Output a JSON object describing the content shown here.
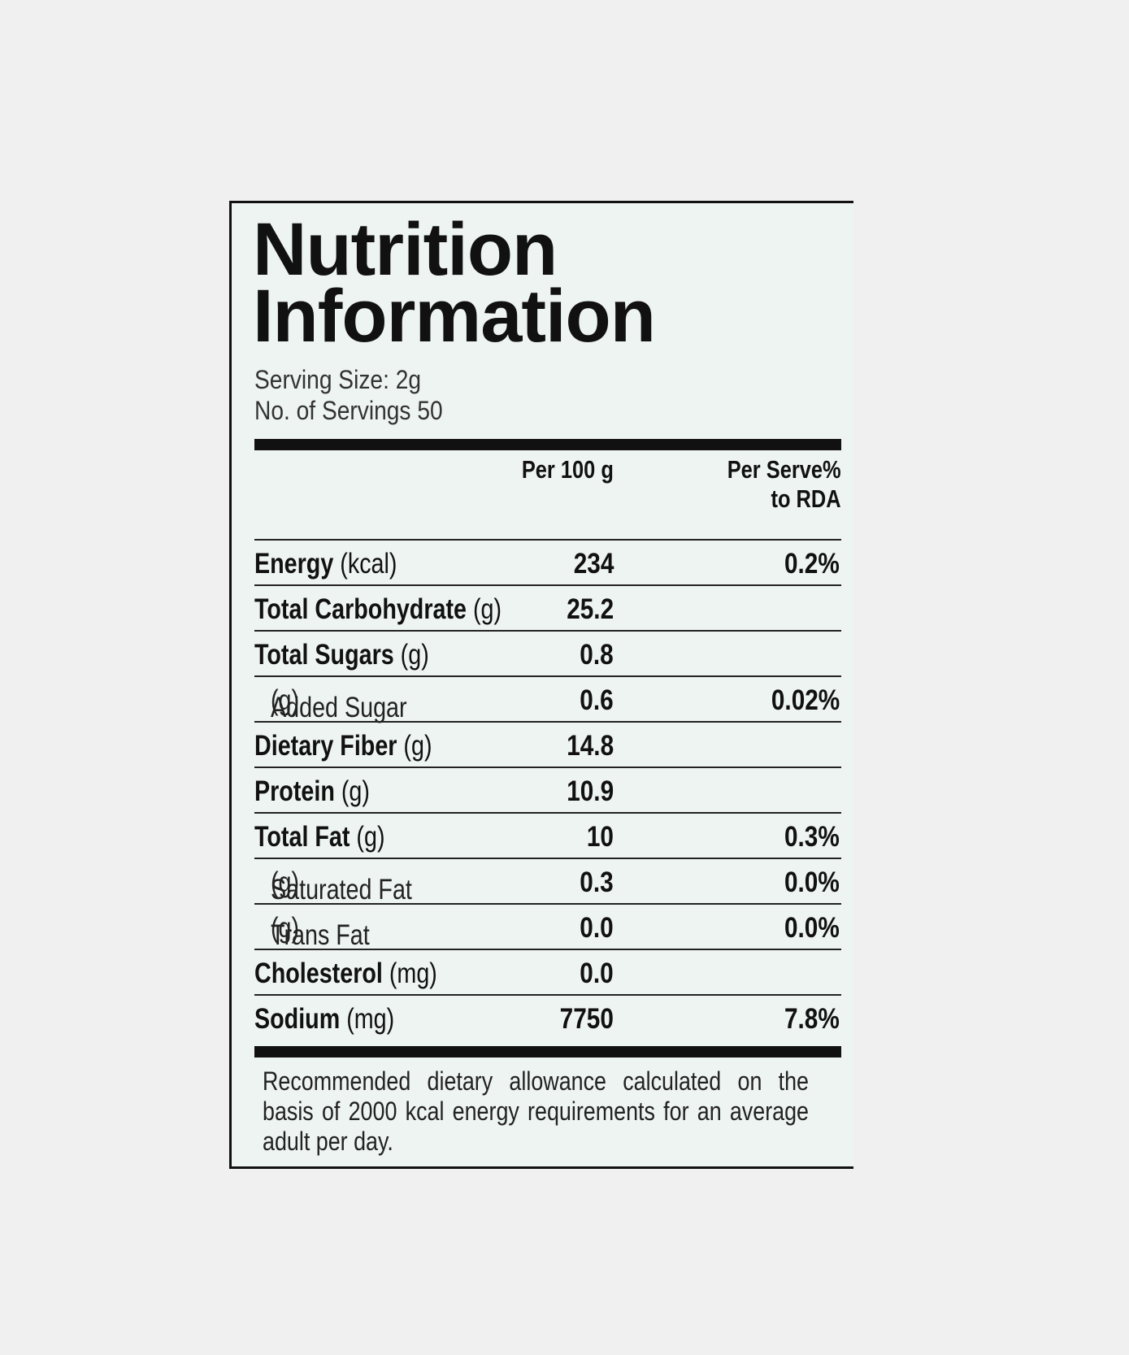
{
  "label": {
    "title": [
      "Nutrition",
      "Information"
    ],
    "serving_size": "Serving Size: 2g",
    "servings": "No. of Servings 50",
    "header": {
      "per_100g": "Per 100 g",
      "rda": [
        "Per Serve%",
        "to RDA"
      ]
    },
    "rows": [
      {
        "name": "Energy",
        "unit": "(kcal)",
        "per_100g": "234",
        "rda": "0.2%"
      },
      {
        "name": "Total Carbohydrate",
        "unit": "(g)",
        "per_100g": "25.2"
      },
      {
        "name": "Total Sugars",
        "unit": "(g)",
        "per_100g": "0.8"
      },
      {
        "name": "Added Sugar",
        "unit": "(g)",
        "per_100g": "0.6",
        "rda": "0.02%",
        "sub": true
      },
      {
        "name": "Dietary Fiber",
        "unit": "(g)",
        "per_100g": "14.8"
      },
      {
        "name": "Protein",
        "unit": "(g)",
        "per_100g": "10.9"
      },
      {
        "name": "Total Fat",
        "unit": "(g)",
        "per_100g": "10",
        "rda": "0.3%"
      },
      {
        "name": "Saturated Fat",
        "unit": "(g)",
        "per_100g": "0.3",
        "rda": "0.0%",
        "sub": true
      },
      {
        "name": "Trans Fat",
        "unit": "(g)",
        "per_100g": "0.0",
        "rda": "0.0%",
        "sub": true
      },
      {
        "name": "Cholesterol",
        "unit": "(mg)",
        "per_100g": "0.0"
      },
      {
        "name": "Sodium",
        "unit": "(mg)",
        "per_100g": "7750",
        "rda": "7.8%"
      }
    ],
    "footnote": "Recommended dietary allowance calculated on the basis of 2000 kcal energy requirements for an average adult per day."
  }
}
